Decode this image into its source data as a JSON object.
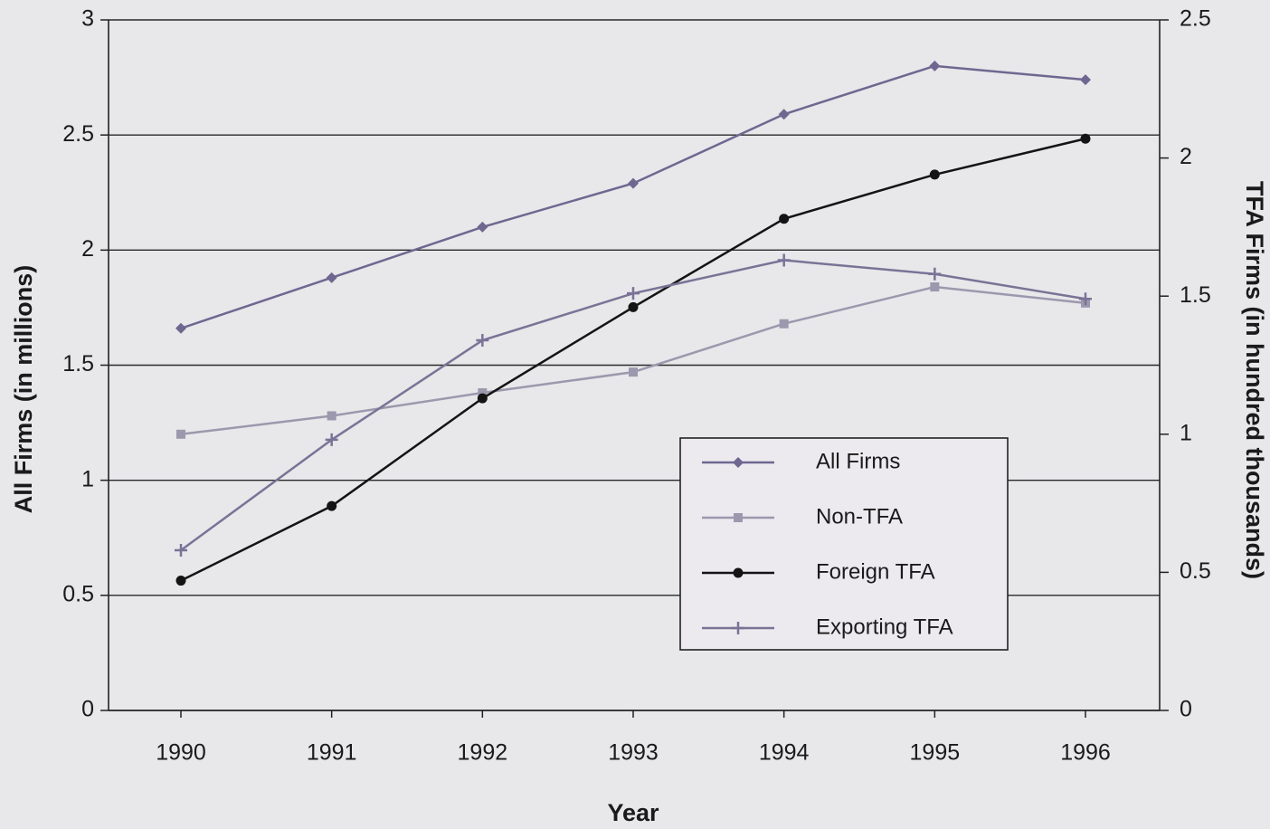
{
  "chart_data": {
    "type": "line",
    "categories": [
      "1990",
      "1991",
      "1992",
      "1993",
      "1994",
      "1995",
      "1996"
    ],
    "x_label": "Year",
    "y_label": "All Firms (in millions)",
    "y2_label": "TFA Firms (in hundred thousands)",
    "ylim": [
      0,
      3
    ],
    "yticks": [
      0,
      0.5,
      1,
      1.5,
      2,
      2.5,
      3
    ],
    "y2lim": [
      0,
      2.5
    ],
    "y2ticks": [
      0,
      0.5,
      1,
      1.5,
      2,
      2.5
    ],
    "grid": true,
    "legend": "lower right",
    "series": [
      {
        "name": "All Firms",
        "color": "#6f6790",
        "marker": "diamond",
        "values": [
          1.66,
          1.88,
          2.1,
          2.29,
          2.59,
          2.8,
          2.74
        ]
      },
      {
        "name": "Non-TFA",
        "color": "#9c98ad",
        "marker": "square",
        "values": [
          1.2,
          1.28,
          1.38,
          1.47,
          1.68,
          1.84,
          1.77
        ]
      },
      {
        "name": "Foreign TFA",
        "color": "#141414",
        "marker": "circle",
        "axis": "y2",
        "values": [
          0.47,
          0.74,
          1.13,
          1.46,
          1.78,
          1.94,
          2.07
        ]
      },
      {
        "name": "Exporting TFA",
        "color": "#7a7396",
        "marker": "plus",
        "axis": "y2",
        "values": [
          0.58,
          0.98,
          1.34,
          1.51,
          1.63,
          1.58,
          1.49
        ]
      }
    ]
  }
}
